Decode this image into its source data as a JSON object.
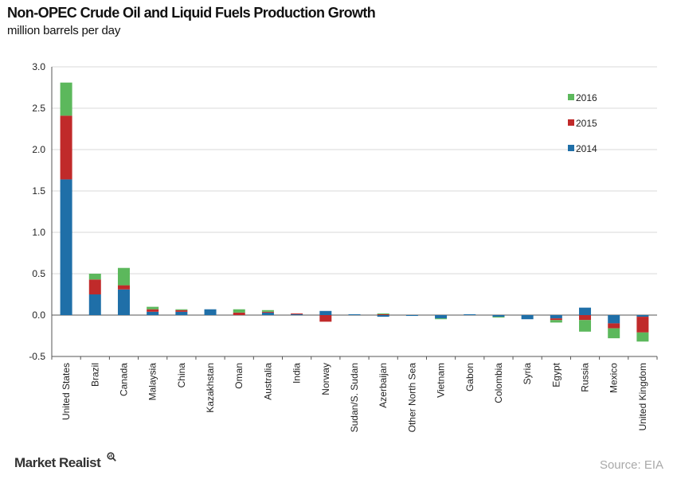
{
  "header": {
    "title": "Non-OPEC Crude Oil and Liquid Fuels Production Growth",
    "subtitle": "million barrels per day"
  },
  "footer": {
    "brand": "Market Realist",
    "brand_icon": "magnifier-chart-icon",
    "source": "Source: EIA"
  },
  "colors": {
    "2014": "#1f6fa8",
    "2015": "#c02a2a",
    "2016": "#5cb85c",
    "grid": "#d9d9d9",
    "axis": "#555555"
  },
  "chart_data": {
    "type": "bar",
    "stacked": true,
    "title": "Non-OPEC Crude Oil and Liquid Fuels Production Growth",
    "ylabel": "million barrels per day",
    "ylim": [
      -0.5,
      3.0
    ],
    "yticks": [
      "3.0",
      "2.5",
      "2.0",
      "1.5",
      "1.0",
      "0.5",
      "0.0",
      "-0.5"
    ],
    "ytick_values": [
      3.0,
      2.5,
      2.0,
      1.5,
      1.0,
      0.5,
      0.0,
      -0.5
    ],
    "grid": true,
    "legend_position": "top-right",
    "legend_order": [
      "2016",
      "2015",
      "2014"
    ],
    "categories": [
      "United States",
      "Brazil",
      "Canada",
      "Malaysia",
      "China",
      "Kazakhstan",
      "Oman",
      "Australia",
      "India",
      "Norway",
      "Sudan/S. Sudan",
      "Azerbaijan",
      "Other North Sea",
      "Vietnam",
      "Gabon",
      "Colombia",
      "Syria",
      "Egypt",
      "Russia",
      "Mexico",
      "United Kingdom"
    ],
    "series": [
      {
        "name": "2014",
        "values": [
          1.64,
          0.25,
          0.31,
          0.04,
          0.04,
          0.07,
          0.0,
          0.03,
          0.01,
          0.05,
          0.01,
          -0.02,
          -0.01,
          -0.04,
          0.01,
          -0.02,
          -0.05,
          -0.04,
          0.09,
          -0.1,
          -0.02
        ]
      },
      {
        "name": "2015",
        "values": [
          0.77,
          0.18,
          0.05,
          0.03,
          0.02,
          0.0,
          0.03,
          0.01,
          0.01,
          -0.08,
          0.0,
          0.01,
          0.0,
          0.0,
          0.0,
          0.0,
          0.0,
          -0.02,
          -0.06,
          -0.06,
          -0.19
        ]
      },
      {
        "name": "2016",
        "values": [
          0.4,
          0.07,
          0.21,
          0.03,
          0.01,
          0.0,
          0.04,
          0.02,
          0.0,
          0.0,
          0.0,
          0.01,
          0.0,
          -0.01,
          0.0,
          -0.01,
          0.0,
          -0.03,
          -0.14,
          -0.12,
          -0.11
        ]
      }
    ]
  }
}
